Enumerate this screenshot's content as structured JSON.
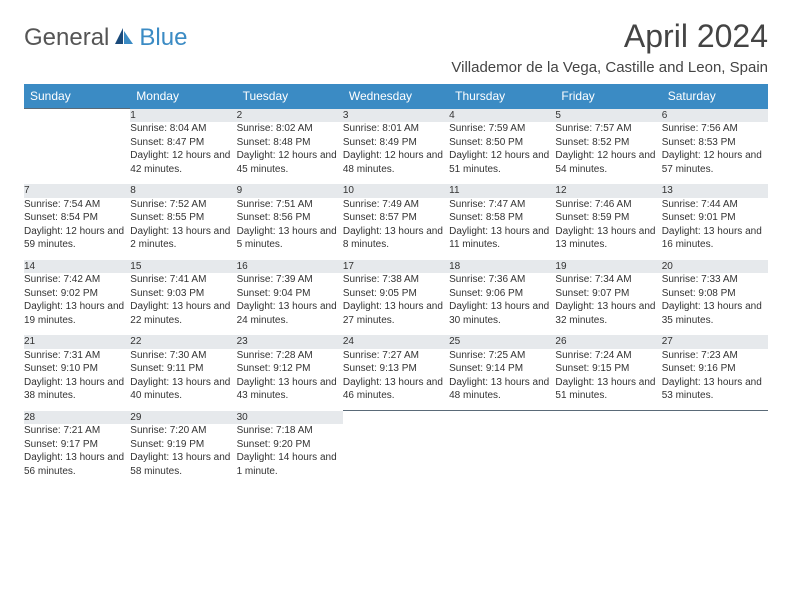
{
  "brand": {
    "general": "General",
    "blue": "Blue"
  },
  "title": "April 2024",
  "location": "Villademor de la Vega, Castille and Leon, Spain",
  "colors": {
    "header_bg": "#3b8bc4",
    "header_text": "#ffffff",
    "daynum_bg": "#e6e9ec",
    "daynum_border": "#5a6a78",
    "body_text": "#333333",
    "background": "#ffffff"
  },
  "dayHeaders": [
    "Sunday",
    "Monday",
    "Tuesday",
    "Wednesday",
    "Thursday",
    "Friday",
    "Saturday"
  ],
  "weeks": [
    [
      null,
      {
        "n": "1",
        "sr": "8:04 AM",
        "ss": "8:47 PM",
        "dl": "12 hours and 42 minutes."
      },
      {
        "n": "2",
        "sr": "8:02 AM",
        "ss": "8:48 PM",
        "dl": "12 hours and 45 minutes."
      },
      {
        "n": "3",
        "sr": "8:01 AM",
        "ss": "8:49 PM",
        "dl": "12 hours and 48 minutes."
      },
      {
        "n": "4",
        "sr": "7:59 AM",
        "ss": "8:50 PM",
        "dl": "12 hours and 51 minutes."
      },
      {
        "n": "5",
        "sr": "7:57 AM",
        "ss": "8:52 PM",
        "dl": "12 hours and 54 minutes."
      },
      {
        "n": "6",
        "sr": "7:56 AM",
        "ss": "8:53 PM",
        "dl": "12 hours and 57 minutes."
      }
    ],
    [
      {
        "n": "7",
        "sr": "7:54 AM",
        "ss": "8:54 PM",
        "dl": "12 hours and 59 minutes."
      },
      {
        "n": "8",
        "sr": "7:52 AM",
        "ss": "8:55 PM",
        "dl": "13 hours and 2 minutes."
      },
      {
        "n": "9",
        "sr": "7:51 AM",
        "ss": "8:56 PM",
        "dl": "13 hours and 5 minutes."
      },
      {
        "n": "10",
        "sr": "7:49 AM",
        "ss": "8:57 PM",
        "dl": "13 hours and 8 minutes."
      },
      {
        "n": "11",
        "sr": "7:47 AM",
        "ss": "8:58 PM",
        "dl": "13 hours and 11 minutes."
      },
      {
        "n": "12",
        "sr": "7:46 AM",
        "ss": "8:59 PM",
        "dl": "13 hours and 13 minutes."
      },
      {
        "n": "13",
        "sr": "7:44 AM",
        "ss": "9:01 PM",
        "dl": "13 hours and 16 minutes."
      }
    ],
    [
      {
        "n": "14",
        "sr": "7:42 AM",
        "ss": "9:02 PM",
        "dl": "13 hours and 19 minutes."
      },
      {
        "n": "15",
        "sr": "7:41 AM",
        "ss": "9:03 PM",
        "dl": "13 hours and 22 minutes."
      },
      {
        "n": "16",
        "sr": "7:39 AM",
        "ss": "9:04 PM",
        "dl": "13 hours and 24 minutes."
      },
      {
        "n": "17",
        "sr": "7:38 AM",
        "ss": "9:05 PM",
        "dl": "13 hours and 27 minutes."
      },
      {
        "n": "18",
        "sr": "7:36 AM",
        "ss": "9:06 PM",
        "dl": "13 hours and 30 minutes."
      },
      {
        "n": "19",
        "sr": "7:34 AM",
        "ss": "9:07 PM",
        "dl": "13 hours and 32 minutes."
      },
      {
        "n": "20",
        "sr": "7:33 AM",
        "ss": "9:08 PM",
        "dl": "13 hours and 35 minutes."
      }
    ],
    [
      {
        "n": "21",
        "sr": "7:31 AM",
        "ss": "9:10 PM",
        "dl": "13 hours and 38 minutes."
      },
      {
        "n": "22",
        "sr": "7:30 AM",
        "ss": "9:11 PM",
        "dl": "13 hours and 40 minutes."
      },
      {
        "n": "23",
        "sr": "7:28 AM",
        "ss": "9:12 PM",
        "dl": "13 hours and 43 minutes."
      },
      {
        "n": "24",
        "sr": "7:27 AM",
        "ss": "9:13 PM",
        "dl": "13 hours and 46 minutes."
      },
      {
        "n": "25",
        "sr": "7:25 AM",
        "ss": "9:14 PM",
        "dl": "13 hours and 48 minutes."
      },
      {
        "n": "26",
        "sr": "7:24 AM",
        "ss": "9:15 PM",
        "dl": "13 hours and 51 minutes."
      },
      {
        "n": "27",
        "sr": "7:23 AM",
        "ss": "9:16 PM",
        "dl": "13 hours and 53 minutes."
      }
    ],
    [
      {
        "n": "28",
        "sr": "7:21 AM",
        "ss": "9:17 PM",
        "dl": "13 hours and 56 minutes."
      },
      {
        "n": "29",
        "sr": "7:20 AM",
        "ss": "9:19 PM",
        "dl": "13 hours and 58 minutes."
      },
      {
        "n": "30",
        "sr": "7:18 AM",
        "ss": "9:20 PM",
        "dl": "14 hours and 1 minute."
      },
      null,
      null,
      null,
      null
    ]
  ],
  "labels": {
    "sunrise": "Sunrise: ",
    "sunset": "Sunset: ",
    "daylight": "Daylight: "
  }
}
